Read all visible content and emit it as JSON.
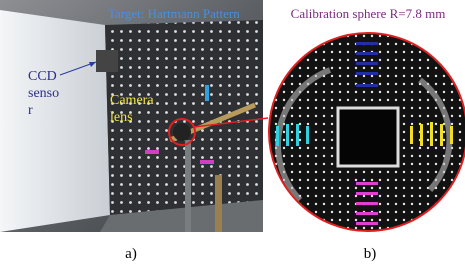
{
  "panel_a": {
    "target_label": "Target: Hartmann Pattern",
    "sensor_label": [
      "CCD",
      "senso",
      "r"
    ],
    "lens_label": [
      "Camera",
      "lens"
    ],
    "caption": "a)"
  },
  "panel_b": {
    "title": "Calibration sphere R=7.8 mm",
    "caption": "b)"
  }
}
